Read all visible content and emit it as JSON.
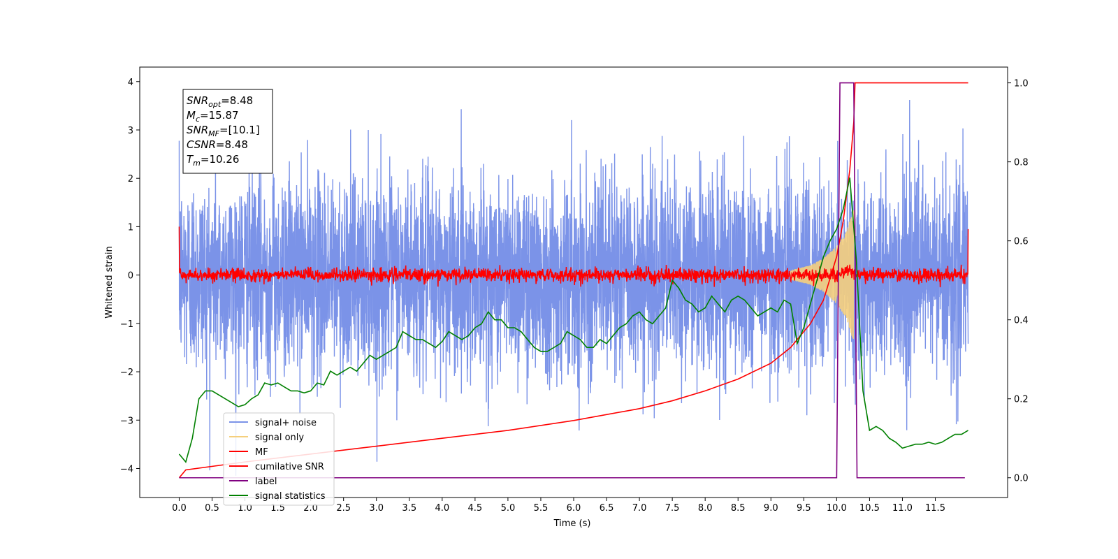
{
  "chart_data": {
    "type": "line",
    "xlabel": "Time (s)",
    "ylabel": "Whitened strain",
    "xlim": [
      -0.6,
      12.6
    ],
    "ylim_left": [
      -4.6,
      4.3
    ],
    "ylim_right": [
      -0.05,
      1.04
    ],
    "x_ticks": [
      "0.0",
      "0.5",
      "1.0",
      "1.5",
      "2.0",
      "2.5",
      "3.0",
      "3.5",
      "4.0",
      "4.5",
      "5.0",
      "5.5",
      "6.0",
      "6.5",
      "7.0",
      "7.5",
      "8.0",
      "8.5",
      "9.0",
      "9.5",
      "10.0",
      "10.5",
      "11.0",
      "11.5"
    ],
    "y_ticks_left": [
      "4",
      "3",
      "2",
      "1",
      "0",
      "−1",
      "−2",
      "−3",
      "−4"
    ],
    "y_ticks_right": [
      "1.0",
      "0.8",
      "0.6",
      "0.4",
      "0.2",
      "0.0"
    ],
    "info_box": {
      "lines": [
        {
          "sym": "SNR",
          "sub": "opt",
          "rest": "=8.48"
        },
        {
          "sym": "M",
          "sub": "c",
          "rest": "=15.87"
        },
        {
          "sym": "SNR",
          "sub": "MF",
          "rest": "=[10.1]"
        },
        {
          "sym": "CSNR",
          "sub": "",
          "rest": "=8.48"
        },
        {
          "sym": "T",
          "sub": "m",
          "rest": "=10.26"
        }
      ]
    },
    "legend": {
      "placement": "lower-left",
      "entries": [
        {
          "label": "signal+ noise",
          "color": "#7b93e8"
        },
        {
          "label": "signal only",
          "color": "#f5cf7d"
        },
        {
          "label": "MF",
          "color": "#ff0000"
        },
        {
          "label": "cumilative SNR",
          "color": "#ff0000"
        },
        {
          "label": "label",
          "color": "#800080"
        },
        {
          "label": "signal statistics",
          "color": "#008000"
        }
      ]
    },
    "series": [
      {
        "name": "signal+ noise",
        "axis": "left",
        "color": "#7b93e8",
        "noise_sigma": 1.0,
        "x_range": [
          0.0,
          12.0
        ]
      },
      {
        "name": "signal only",
        "axis": "left",
        "color": "#f5cf7d",
        "chirp_end": 10.26,
        "envelope": [
          [
            9.3,
            0.1
          ],
          [
            9.6,
            0.2
          ],
          [
            9.8,
            0.35
          ],
          [
            10.0,
            0.6
          ],
          [
            10.15,
            0.9
          ],
          [
            10.26,
            1.4
          ]
        ]
      },
      {
        "name": "MF",
        "axis": "left",
        "color": "#ff0000",
        "noise_sigma": 0.07,
        "x_range": [
          0.0,
          12.0
        ],
        "edge_values": [
          1.0,
          0.95
        ]
      },
      {
        "name": "cumilative SNR",
        "axis": "right",
        "color": "#ff0000",
        "x": [
          0.0,
          0.1,
          1.0,
          2.0,
          3.0,
          4.0,
          5.0,
          6.0,
          7.0,
          7.5,
          8.0,
          8.5,
          9.0,
          9.3,
          9.6,
          9.8,
          10.0,
          10.1,
          10.2,
          10.26,
          10.28,
          12.0
        ],
        "values": [
          0.0,
          0.02,
          0.04,
          0.06,
          0.08,
          0.1,
          0.12,
          0.145,
          0.175,
          0.195,
          0.22,
          0.25,
          0.29,
          0.33,
          0.39,
          0.45,
          0.56,
          0.65,
          0.78,
          0.9,
          1.0,
          1.0
        ]
      },
      {
        "name": "label",
        "axis": "right",
        "color": "#800080",
        "x": [
          0.0,
          10.0,
          10.05,
          10.26,
          10.31,
          11.95
        ],
        "values": [
          0.0,
          0.0,
          1.0,
          1.0,
          0.0,
          0.0
        ]
      },
      {
        "name": "signal statistics",
        "axis": "right",
        "color": "#008000",
        "x": [
          0.0,
          0.1,
          0.2,
          0.3,
          0.4,
          0.5,
          0.6,
          0.7,
          0.8,
          0.9,
          1.0,
          1.1,
          1.2,
          1.3,
          1.4,
          1.5,
          1.6,
          1.7,
          1.8,
          1.9,
          2.0,
          2.1,
          2.2,
          2.3,
          2.4,
          2.5,
          2.6,
          2.7,
          2.8,
          2.9,
          3.0,
          3.1,
          3.2,
          3.3,
          3.4,
          3.5,
          3.6,
          3.7,
          3.8,
          3.9,
          4.0,
          4.1,
          4.2,
          4.3,
          4.4,
          4.5,
          4.6,
          4.7,
          4.8,
          4.9,
          5.0,
          5.1,
          5.2,
          5.3,
          5.4,
          5.5,
          5.6,
          5.7,
          5.8,
          5.9,
          6.0,
          6.1,
          6.2,
          6.3,
          6.4,
          6.5,
          6.6,
          6.7,
          6.8,
          6.9,
          7.0,
          7.1,
          7.2,
          7.3,
          7.4,
          7.5,
          7.6,
          7.7,
          7.8,
          7.9,
          8.0,
          8.1,
          8.2,
          8.3,
          8.4,
          8.5,
          8.6,
          8.7,
          8.8,
          8.9,
          9.0,
          9.1,
          9.2,
          9.3,
          9.4,
          9.5,
          9.6,
          9.7,
          9.8,
          9.9,
          10.0,
          10.1,
          10.2,
          10.3,
          10.4,
          10.5,
          10.6,
          10.7,
          10.8,
          10.9,
          11.0,
          11.1,
          11.2,
          11.3,
          11.4,
          11.5,
          11.6,
          11.7,
          11.8,
          11.9,
          12.0
        ],
        "values": [
          0.06,
          0.04,
          0.1,
          0.2,
          0.22,
          0.22,
          0.21,
          0.2,
          0.19,
          0.18,
          0.185,
          0.2,
          0.21,
          0.24,
          0.235,
          0.24,
          0.23,
          0.22,
          0.22,
          0.215,
          0.22,
          0.24,
          0.235,
          0.27,
          0.26,
          0.27,
          0.28,
          0.27,
          0.29,
          0.31,
          0.3,
          0.31,
          0.32,
          0.33,
          0.37,
          0.36,
          0.35,
          0.35,
          0.34,
          0.33,
          0.345,
          0.37,
          0.36,
          0.35,
          0.36,
          0.38,
          0.39,
          0.42,
          0.4,
          0.4,
          0.38,
          0.38,
          0.37,
          0.35,
          0.33,
          0.32,
          0.32,
          0.33,
          0.34,
          0.37,
          0.36,
          0.35,
          0.33,
          0.33,
          0.35,
          0.34,
          0.36,
          0.38,
          0.39,
          0.41,
          0.42,
          0.4,
          0.39,
          0.41,
          0.43,
          0.5,
          0.48,
          0.45,
          0.44,
          0.42,
          0.43,
          0.46,
          0.44,
          0.42,
          0.45,
          0.46,
          0.45,
          0.43,
          0.41,
          0.42,
          0.43,
          0.42,
          0.45,
          0.44,
          0.34,
          0.38,
          0.44,
          0.5,
          0.56,
          0.6,
          0.63,
          0.68,
          0.76,
          0.55,
          0.22,
          0.12,
          0.13,
          0.12,
          0.1,
          0.09,
          0.075,
          0.08,
          0.085,
          0.085,
          0.09,
          0.085,
          0.09,
          0.1,
          0.11,
          0.11,
          0.12
        ]
      }
    ]
  }
}
